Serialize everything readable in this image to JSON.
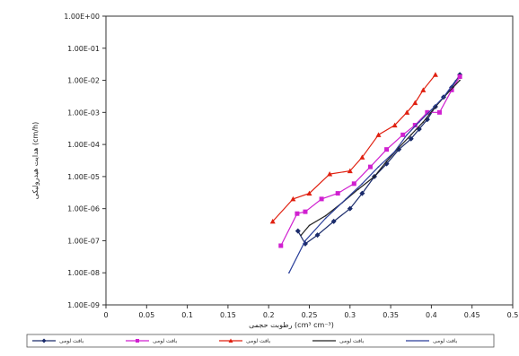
{
  "chart_data": {
    "type": "line",
    "title": "",
    "xlabel": "رطوبت حجمی (cm³ cm⁻³)",
    "ylabel": "هدایت هیدرولیکی (cm/h)",
    "xlim": [
      0,
      0.5
    ],
    "ylim_log10": [
      -9,
      0
    ],
    "x_ticks": [
      "0",
      "0.05",
      "0.1",
      "0.15",
      "0.2",
      "0.25",
      "0.3",
      "0.35",
      "0.4",
      "0.45",
      "0.5"
    ],
    "y_ticks": [
      "1.00E-09",
      "1.00E-08",
      "1.00E-07",
      "1.00E-06",
      "1.00E-05",
      "1.00E-04",
      "1.00E-03",
      "1.00E-02",
      "1.00E-01",
      "1.00E+00"
    ],
    "grid": false,
    "legend": "bottom",
    "series": [
      {
        "name": "بافت لومی",
        "color": "#1a2b6b",
        "marker": "diamond",
        "x": [
          0.236,
          0.245,
          0.26,
          0.28,
          0.3,
          0.315,
          0.33,
          0.345,
          0.36,
          0.375,
          0.385,
          0.395,
          0.405,
          0.415,
          0.425,
          0.435
        ],
        "y": [
          2e-07,
          8e-08,
          1.5e-07,
          4e-07,
          1e-06,
          3e-06,
          1e-05,
          2.5e-05,
          7e-05,
          0.00015,
          0.0003,
          0.0006,
          0.0015,
          0.003,
          0.006,
          0.015
        ]
      },
      {
        "name": "بافت لومی",
        "color": "#d020d0",
        "marker": "square",
        "x": [
          0.215,
          0.235,
          0.245,
          0.265,
          0.285,
          0.305,
          0.325,
          0.345,
          0.365,
          0.38,
          0.395,
          0.41,
          0.425,
          0.435
        ],
        "y": [
          7e-08,
          7e-07,
          8e-07,
          2e-06,
          3e-06,
          6e-06,
          2e-05,
          7e-05,
          0.0002,
          0.0004,
          0.001,
          0.001,
          0.005,
          0.013
        ]
      },
      {
        "name": "بافت لومی",
        "color": "#e02010",
        "marker": "triangle",
        "x": [
          0.205,
          0.23,
          0.25,
          0.275,
          0.3,
          0.315,
          0.335,
          0.355,
          0.37,
          0.38,
          0.39,
          0.405
        ],
        "y": [
          4e-07,
          2e-06,
          3e-06,
          1.2e-05,
          1.5e-05,
          4e-05,
          0.0002,
          0.0004,
          0.001,
          0.002,
          0.005,
          0.015
        ]
      },
      {
        "name": "بافت لومی",
        "color": "#222222",
        "marker": "none",
        "x": [
          0.24,
          0.25,
          0.27,
          0.29,
          0.31,
          0.33,
          0.345,
          0.36,
          0.375,
          0.39,
          0.405,
          0.42,
          0.435
        ],
        "y": [
          1.5e-07,
          3e-07,
          6e-07,
          1.5e-06,
          4e-06,
          1e-05,
          3e-05,
          8e-05,
          0.0002,
          0.0005,
          0.0015,
          0.004,
          0.01
        ]
      },
      {
        "name": "بافت لومی",
        "color": "#2a3f9a",
        "marker": "none",
        "x": [
          0.225,
          0.245,
          0.27,
          0.295,
          0.315,
          0.335,
          0.355,
          0.37,
          0.385,
          0.4,
          0.415,
          0.43
        ],
        "y": [
          1e-08,
          1e-07,
          5e-07,
          2e-06,
          6e-06,
          2e-05,
          6e-05,
          0.0002,
          0.0005,
          0.0012,
          0.003,
          0.01
        ]
      }
    ]
  }
}
